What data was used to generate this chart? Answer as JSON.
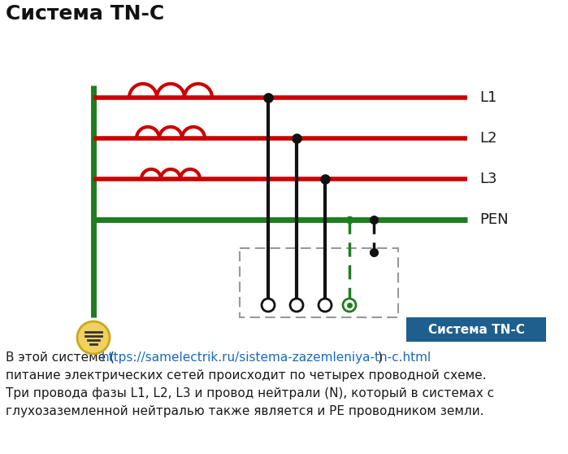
{
  "title": "Система TN-C",
  "title_fontsize": 18,
  "bg_color": "#ffffff",
  "line_colors": {
    "red": "#cc0000",
    "green": "#1e7e1e",
    "black": "#111111",
    "gray_dash": "#999999",
    "yellow_fill": "#f0d060",
    "yellow_edge": "#c8a820"
  },
  "labels": {
    "L1": "L1",
    "L2": "L2",
    "L3": "L3",
    "PEN": "PEN",
    "badge": "Система TN-C"
  },
  "badge_color": "#1e5f8e",
  "badge_text_color": "#ffffff",
  "text_block": {
    "line1_plain1": "В этой системе ( ",
    "line1_link": "https://samelectrik.ru/sistema-zazemleniya-tn-c.html",
    "line1_plain2": ")",
    "line2": "питание электрических сетей происходит по четырех проводной схеме.",
    "line3": "Три провода фазы L1, L2, L3 и провод нейтрали (N), который в системах с",
    "line4": "глухозаземленной нейтралью также является и PE проводником земли."
  },
  "link_color": "#1a6bbf"
}
